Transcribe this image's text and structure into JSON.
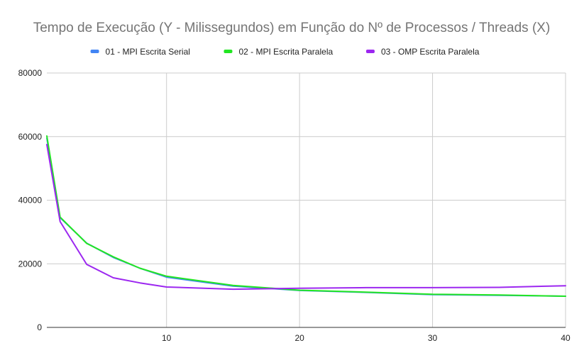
{
  "chart_data": {
    "type": "line",
    "title": "Tempo de Execução (Y - Milissegundos) em Função do Nº de Processos / Threads (X)",
    "xlabel": "",
    "ylabel": "",
    "xlim": [
      1,
      40
    ],
    "ylim": [
      0,
      80000
    ],
    "x_ticks": [
      10,
      20,
      30,
      40
    ],
    "y_ticks": [
      0,
      20000,
      40000,
      60000,
      80000
    ],
    "grid": true,
    "legend_position": "top",
    "series": [
      {
        "name": "01 - MPI Escrita Serial",
        "color": "#4285f4",
        "x": [
          1,
          2,
          4,
          6,
          8,
          10,
          15,
          20,
          25,
          30,
          35,
          40
        ],
        "y": [
          59500,
          34500,
          26500,
          22000,
          18600,
          15800,
          13000,
          11600,
          11000,
          10300,
          10100,
          9800
        ]
      },
      {
        "name": "02 - MPI Escrita Paralela",
        "color": "#22e622",
        "x": [
          1,
          2,
          4,
          6,
          8,
          10,
          15,
          20,
          25,
          30,
          35,
          40
        ],
        "y": [
          60200,
          34700,
          26400,
          22200,
          18600,
          16100,
          13200,
          11700,
          11100,
          10400,
          10200,
          9800
        ]
      },
      {
        "name": "03 - OMP Escrita Paralela",
        "color": "#9c27f0",
        "x": [
          1,
          2,
          4,
          6,
          8,
          10,
          15,
          20,
          25,
          30,
          35,
          40
        ],
        "y": [
          57500,
          33300,
          19800,
          15600,
          14000,
          12700,
          12000,
          12300,
          12500,
          12500,
          12600,
          13100
        ]
      }
    ]
  }
}
